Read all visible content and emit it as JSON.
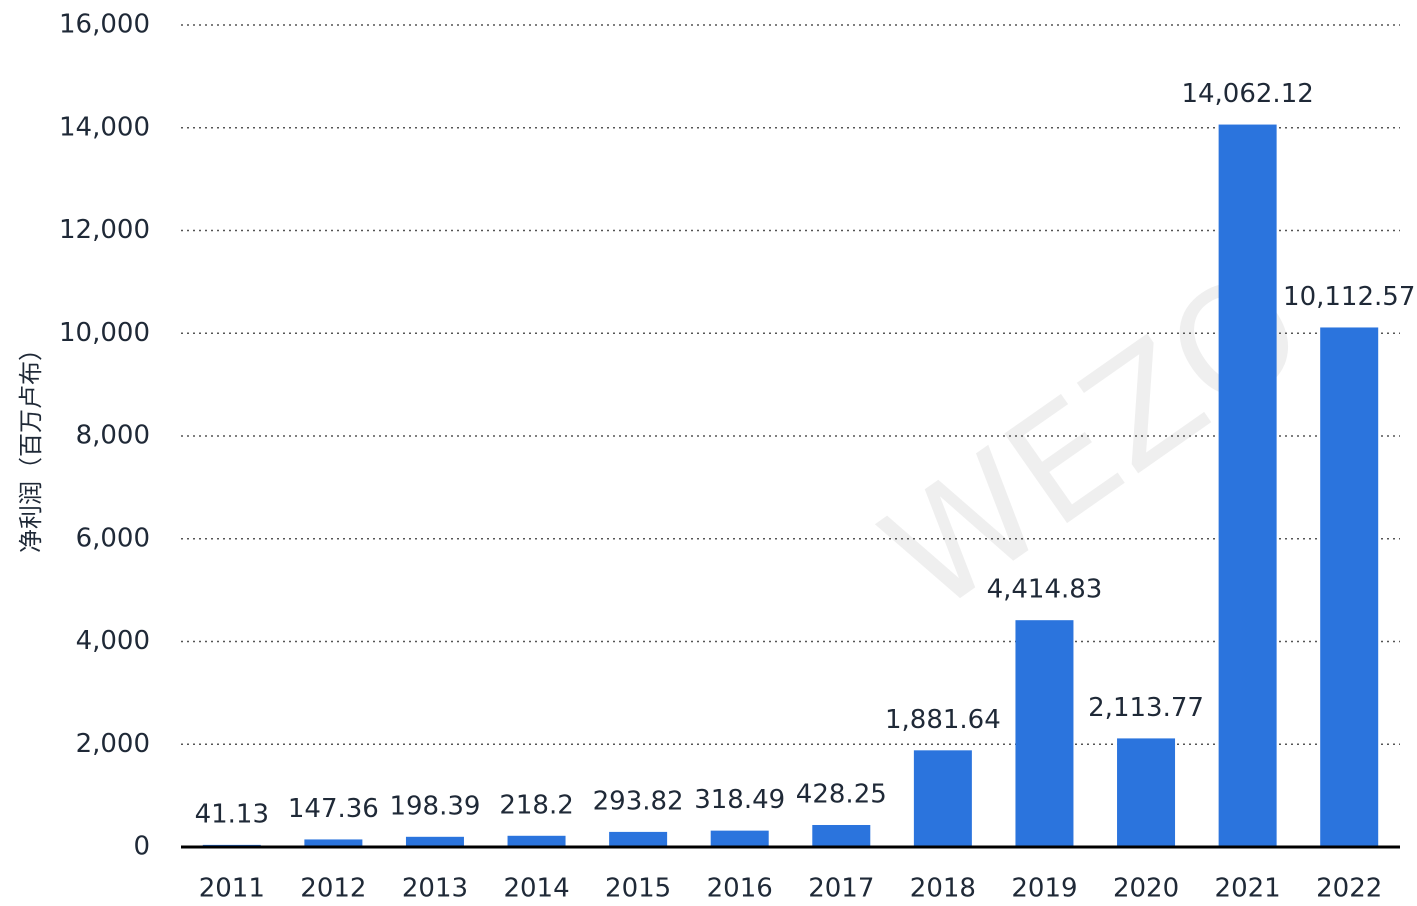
{
  "chart_data": {
    "type": "bar",
    "y_axis_label": "净利润（百万卢布）",
    "watermark": "WEZO",
    "categories": [
      "2011",
      "2012",
      "2013",
      "2014",
      "2015",
      "2016",
      "2017",
      "2018",
      "2019",
      "2020",
      "2021",
      "2022"
    ],
    "values": [
      41.13,
      147.36,
      198.39,
      218.2,
      293.82,
      318.49,
      428.25,
      1881.64,
      4414.83,
      2113.77,
      14062.12,
      10112.57
    ],
    "value_labels": [
      "41.13",
      "147.36",
      "198.39",
      "218.2",
      "293.82",
      "318.49",
      "428.25",
      "1,881.64",
      "4,414.83",
      "2,113.77",
      "14,062.12",
      "10,112.57"
    ],
    "color": "#2b74dd",
    "ylim": [
      0,
      16000
    ],
    "yticks": [
      0,
      {
        "value": 2000,
        "label": "2,000"
      },
      {
        "value": 4000,
        "label": "4,000"
      },
      {
        "value": 6000,
        "label": "6,000"
      },
      {
        "value": 8000,
        "label": "8,000"
      },
      {
        "value": 10000,
        "label": "10,000"
      },
      {
        "value": 12000,
        "label": "12,000"
      },
      {
        "value": 14000,
        "label": "14,000"
      },
      {
        "value": 16000,
        "label": "16,000"
      }
    ],
    "grid": true
  }
}
